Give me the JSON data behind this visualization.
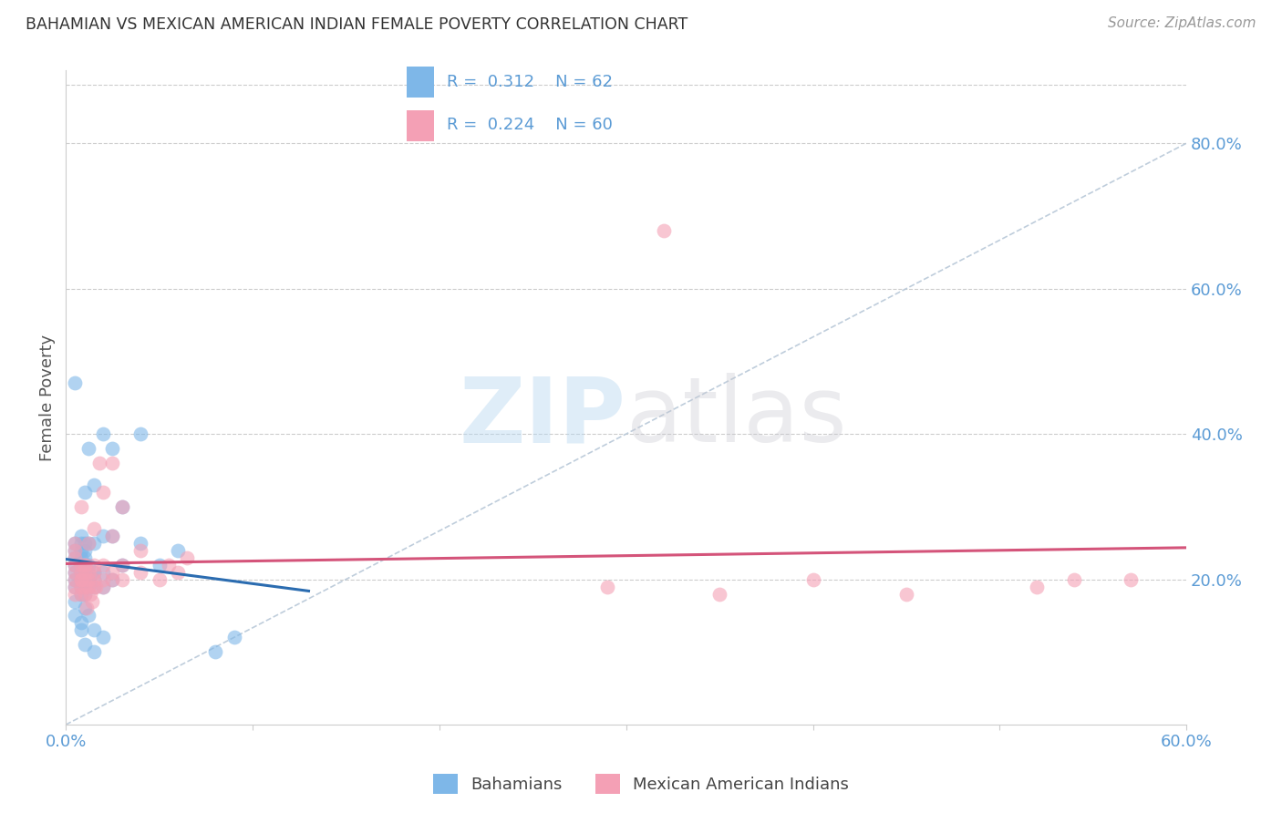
{
  "title": "BAHAMIAN VS MEXICAN AMERICAN INDIAN FEMALE POVERTY CORRELATION CHART",
  "source": "Source: ZipAtlas.com",
  "ylabel": "Female Poverty",
  "xlim": [
    0.0,
    0.6
  ],
  "ylim": [
    0.0,
    0.9
  ],
  "yticks_right": [
    0.2,
    0.4,
    0.6,
    0.8
  ],
  "ytick_labels_right": [
    "20.0%",
    "40.0%",
    "60.0%",
    "80.0%"
  ],
  "bahamian_color": "#7eb7e8",
  "mexican_color": "#f4a0b5",
  "line_blue": "#2b6cb0",
  "line_pink": "#d4547a",
  "diagonal_color": "#b8c8d8",
  "R_bahamian": 0.312,
  "N_bahamian": 62,
  "R_mexican": 0.224,
  "N_mexican": 60,
  "legend_bahamians": "Bahamians",
  "legend_mexicans": "Mexican American Indians",
  "bahamian_x": [
    0.005,
    0.005,
    0.005,
    0.005,
    0.005,
    0.005,
    0.005,
    0.005,
    0.008,
    0.008,
    0.008,
    0.008,
    0.008,
    0.008,
    0.008,
    0.008,
    0.008,
    0.01,
    0.01,
    0.01,
    0.01,
    0.01,
    0.01,
    0.01,
    0.01,
    0.01,
    0.012,
    0.012,
    0.012,
    0.012,
    0.012,
    0.012,
    0.015,
    0.015,
    0.015,
    0.015,
    0.015,
    0.02,
    0.02,
    0.02,
    0.02,
    0.025,
    0.025,
    0.025,
    0.03,
    0.03,
    0.04,
    0.04,
    0.05,
    0.06,
    0.08,
    0.09,
    0.015,
    0.02,
    0.005,
    0.005,
    0.008,
    0.01,
    0.008,
    0.012,
    0.01,
    0.015
  ],
  "bahamian_y": [
    0.19,
    0.2,
    0.21,
    0.22,
    0.23,
    0.24,
    0.25,
    0.47,
    0.18,
    0.19,
    0.2,
    0.21,
    0.22,
    0.23,
    0.24,
    0.25,
    0.26,
    0.18,
    0.19,
    0.2,
    0.21,
    0.22,
    0.23,
    0.24,
    0.25,
    0.32,
    0.19,
    0.2,
    0.21,
    0.22,
    0.25,
    0.38,
    0.19,
    0.2,
    0.21,
    0.25,
    0.33,
    0.19,
    0.21,
    0.26,
    0.4,
    0.2,
    0.26,
    0.38,
    0.22,
    0.3,
    0.25,
    0.4,
    0.22,
    0.24,
    0.1,
    0.12,
    0.1,
    0.12,
    0.15,
    0.17,
    0.14,
    0.16,
    0.13,
    0.15,
    0.11,
    0.13
  ],
  "mexican_x": [
    0.005,
    0.005,
    0.005,
    0.005,
    0.005,
    0.005,
    0.005,
    0.005,
    0.008,
    0.008,
    0.008,
    0.008,
    0.008,
    0.008,
    0.01,
    0.01,
    0.01,
    0.01,
    0.01,
    0.012,
    0.012,
    0.012,
    0.012,
    0.015,
    0.015,
    0.015,
    0.015,
    0.02,
    0.02,
    0.02,
    0.025,
    0.025,
    0.025,
    0.03,
    0.03,
    0.03,
    0.04,
    0.04,
    0.05,
    0.055,
    0.06,
    0.065,
    0.02,
    0.025,
    0.013,
    0.016,
    0.29,
    0.32,
    0.35,
    0.4,
    0.45,
    0.52,
    0.54,
    0.57,
    0.011,
    0.014,
    0.008,
    0.01,
    0.015,
    0.018
  ],
  "mexican_y": [
    0.18,
    0.19,
    0.2,
    0.21,
    0.22,
    0.23,
    0.24,
    0.25,
    0.18,
    0.19,
    0.2,
    0.21,
    0.22,
    0.3,
    0.18,
    0.19,
    0.2,
    0.21,
    0.22,
    0.19,
    0.2,
    0.21,
    0.25,
    0.19,
    0.2,
    0.21,
    0.27,
    0.19,
    0.2,
    0.22,
    0.2,
    0.21,
    0.26,
    0.2,
    0.22,
    0.3,
    0.21,
    0.24,
    0.2,
    0.22,
    0.21,
    0.23,
    0.32,
    0.36,
    0.18,
    0.19,
    0.19,
    0.68,
    0.18,
    0.2,
    0.18,
    0.19,
    0.2,
    0.2,
    0.16,
    0.17,
    0.2,
    0.22,
    0.22,
    0.36
  ]
}
